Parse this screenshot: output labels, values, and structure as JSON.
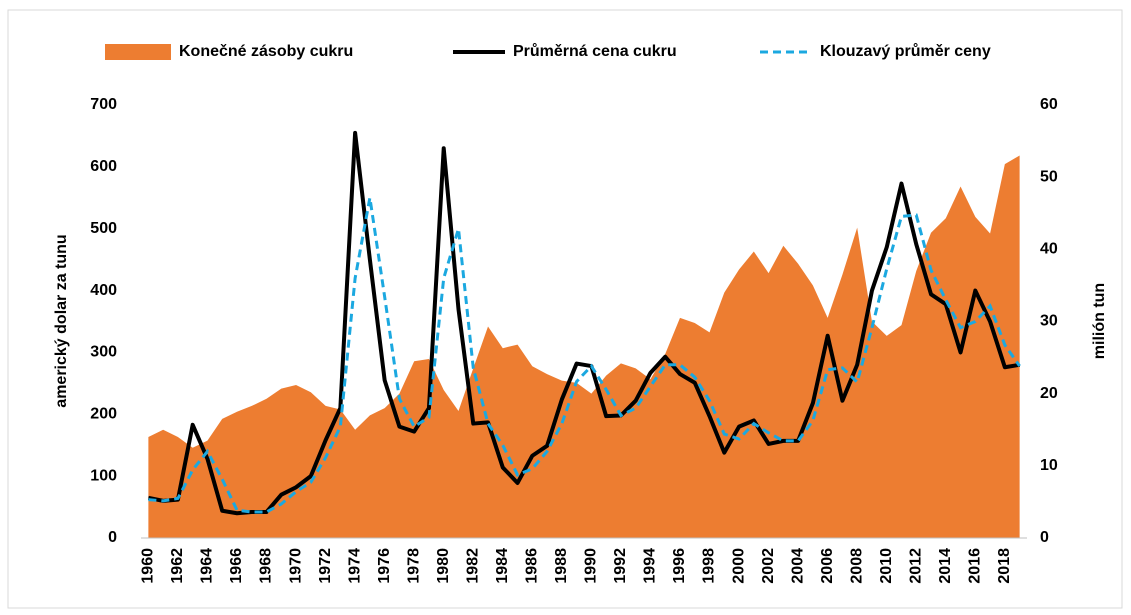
{
  "chart_data": {
    "type": "combo",
    "y_label": "americký dolar za tunu",
    "y2_label": "milión tun",
    "x": [
      1960,
      1961,
      1962,
      1963,
      1964,
      1965,
      1966,
      1967,
      1968,
      1969,
      1970,
      1971,
      1972,
      1973,
      1974,
      1975,
      1976,
      1977,
      1978,
      1979,
      1980,
      1981,
      1982,
      1983,
      1984,
      1985,
      1986,
      1987,
      1988,
      1989,
      1990,
      1991,
      1992,
      1993,
      1994,
      1995,
      1996,
      1997,
      1998,
      1999,
      2000,
      2001,
      2002,
      2003,
      2004,
      2005,
      2006,
      2007,
      2008,
      2009,
      2010,
      2011,
      2012,
      2013,
      2014,
      2015,
      2016,
      2017,
      2018,
      2019
    ],
    "xlim": [
      1959.5,
      2019.5
    ],
    "xticks": [
      1960,
      1962,
      1964,
      1966,
      1968,
      1970,
      1972,
      1974,
      1976,
      1978,
      1980,
      1982,
      1984,
      1986,
      1988,
      1990,
      1992,
      1994,
      1996,
      1998,
      2000,
      2002,
      2004,
      2006,
      2008,
      2010,
      2012,
      2014,
      2016,
      2018
    ],
    "ylim": [
      0,
      700
    ],
    "yticks": [
      0,
      100,
      200,
      300,
      400,
      500,
      600,
      700
    ],
    "y2lim": [
      0,
      60
    ],
    "y2ticks": [
      0,
      10,
      20,
      30,
      40,
      50,
      60
    ],
    "series": [
      {
        "name": "Konečné zásoby cukru",
        "kind": "area",
        "axis": "y2",
        "color": "#ed7d31",
        "values": [
          14,
          15,
          14,
          12.5,
          13.5,
          16.5,
          17.5,
          18.3,
          19.3,
          20.7,
          21.2,
          20.2,
          18.3,
          17.8,
          15,
          17,
          18,
          20,
          24.5,
          24.8,
          20.5,
          17.6,
          23.5,
          29.3,
          26.3,
          26.8,
          23.8,
          22.7,
          21.8,
          21.5,
          20,
          22.5,
          24.2,
          23.5,
          22,
          25.5,
          30.5,
          29.8,
          28.5,
          34,
          37.2,
          39.7,
          36.7,
          40.5,
          38,
          35,
          30.5,
          36.5,
          43,
          30,
          28,
          29.5,
          37,
          42.3,
          44.3,
          48.7,
          44.5,
          42.2,
          51.8,
          53
        ]
      },
      {
        "name": "Průměrná cena cukru",
        "kind": "line",
        "color": "#000000",
        "values": [
          65,
          60,
          62,
          183,
          128,
          44,
          40,
          42,
          42,
          70,
          82,
          100,
          158,
          210,
          655,
          450,
          255,
          180,
          172,
          210,
          630,
          370,
          185,
          187,
          114,
          89,
          133,
          149,
          224,
          282,
          278,
          197,
          198,
          222,
          267,
          293,
          265,
          251,
          197,
          138,
          180,
          190,
          152,
          157,
          157,
          218,
          327,
          222,
          280,
          400,
          470,
          573,
          475,
          394,
          378,
          300,
          400,
          350,
          276,
          280
        ]
      },
      {
        "name": "Klouzavý průměr ceny",
        "kind": "dashed",
        "color": "#1ba8e0",
        "values": [
          62,
          60,
          64,
          110,
          140,
          95,
          45,
          42,
          42,
          55,
          75,
          90,
          130,
          180,
          420,
          550,
          390,
          225,
          180,
          195,
          420,
          500,
          275,
          185,
          150,
          102,
          112,
          140,
          185,
          253,
          278,
          240,
          198,
          210,
          245,
          280,
          280,
          260,
          222,
          168,
          160,
          185,
          170,
          157,
          157,
          190,
          272,
          275,
          252,
          340,
          435,
          520,
          522,
          433,
          385,
          340,
          350,
          375,
          312,
          278
        ]
      }
    ],
    "legend": "top"
  }
}
